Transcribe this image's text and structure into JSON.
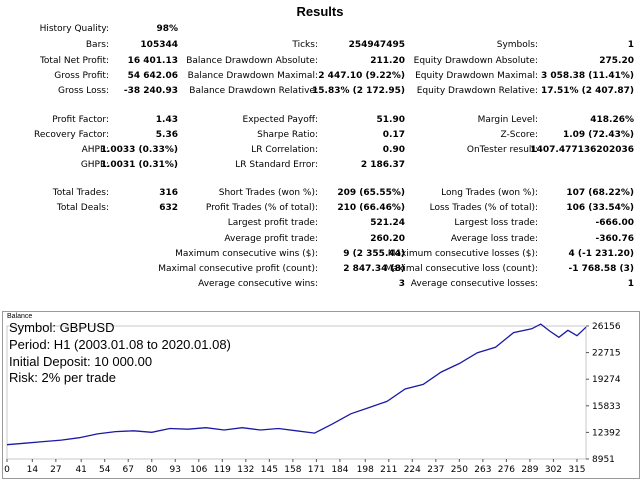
{
  "title": "Results",
  "stats": {
    "history_quality": {
      "label": "History Quality:",
      "value": "98%"
    },
    "bars": {
      "label": "Bars:",
      "value": "105344"
    },
    "ticks": {
      "label": "Ticks:",
      "value": "254947495"
    },
    "symbols": {
      "label": "Symbols:",
      "value": "1"
    },
    "total_net_profit": {
      "label": "Total Net Profit:",
      "value": "16 401.13"
    },
    "balance_dd_abs": {
      "label": "Balance Drawdown Absolute:",
      "value": "211.20"
    },
    "equity_dd_abs": {
      "label": "Equity Drawdown Absolute:",
      "value": "275.20"
    },
    "gross_profit": {
      "label": "Gross Profit:",
      "value": "54 642.06"
    },
    "balance_dd_max": {
      "label": "Balance Drawdown Maximal:",
      "value": "2 447.10 (9.22%)"
    },
    "equity_dd_max": {
      "label": "Equity Drawdown Maximal:",
      "value": "3 058.38 (11.41%)"
    },
    "gross_loss": {
      "label": "Gross Loss:",
      "value": "-38 240.93"
    },
    "balance_dd_rel": {
      "label": "Balance Drawdown Relative:",
      "value": "15.83% (2 172.95)"
    },
    "equity_dd_rel": {
      "label": "Equity Drawdown Relative:",
      "value": "17.51% (2 407.87)"
    },
    "profit_factor": {
      "label": "Profit Factor:",
      "value": "1.43"
    },
    "expected_payoff": {
      "label": "Expected Payoff:",
      "value": "51.90"
    },
    "margin_level": {
      "label": "Margin Level:",
      "value": "418.26%"
    },
    "recovery_factor": {
      "label": "Recovery Factor:",
      "value": "5.36"
    },
    "sharpe_ratio": {
      "label": "Sharpe Ratio:",
      "value": "0.17"
    },
    "z_score": {
      "label": "Z-Score:",
      "value": "1.09 (72.43%)"
    },
    "ahpr": {
      "label": "AHPR:",
      "value": "1.0033 (0.33%)"
    },
    "lr_correlation": {
      "label": "LR Correlation:",
      "value": "0.90"
    },
    "ontester_result": {
      "label": "OnTester result:",
      "value": "1407.477136202036"
    },
    "ghpr": {
      "label": "GHPR:",
      "value": "1.0031 (0.31%)"
    },
    "lr_std_error": {
      "label": "LR Standard Error:",
      "value": "2 186.37"
    },
    "total_trades": {
      "label": "Total Trades:",
      "value": "316"
    },
    "short_trades": {
      "label": "Short Trades (won %):",
      "value": "209 (65.55%)"
    },
    "long_trades": {
      "label": "Long Trades (won %):",
      "value": "107 (68.22%)"
    },
    "total_deals": {
      "label": "Total Deals:",
      "value": "632"
    },
    "profit_trades": {
      "label": "Profit Trades (% of total):",
      "value": "210 (66.46%)"
    },
    "loss_trades": {
      "label": "Loss Trades (% of total):",
      "value": "106 (33.54%)"
    },
    "largest_profit": {
      "label": "Largest profit trade:",
      "value": "521.24"
    },
    "largest_loss": {
      "label": "Largest loss trade:",
      "value": "-666.00"
    },
    "avg_profit": {
      "label": "Average profit trade:",
      "value": "260.20"
    },
    "avg_loss": {
      "label": "Average loss trade:",
      "value": "-360.76"
    },
    "max_consec_wins": {
      "label": "Maximum consecutive wins ($):",
      "value": "9 (2 355.44)"
    },
    "max_consec_losses": {
      "label": "Maximum consecutive losses ($):",
      "value": "4 (-1 231.20)"
    },
    "maximal_consec_profit": {
      "label": "Maximal consecutive profit (count):",
      "value": "2 847.34 (8)"
    },
    "maximal_consec_loss": {
      "label": "Maximal consecutive loss (count):",
      "value": "-1 768.58 (3)"
    },
    "avg_consec_wins": {
      "label": "Average consecutive wins:",
      "value": "3"
    },
    "avg_consec_losses": {
      "label": "Average consecutive losses:",
      "value": "1"
    }
  },
  "chart_info": {
    "panel_title": "Balance",
    "symbol": "Symbol: GBPUSD",
    "period": "Period: H1 (2003.01.08 to 2020.01.08)",
    "deposit": "Initial Deposit: 10 000.00",
    "risk": "Risk: 2% per trade"
  },
  "chart_data": {
    "type": "line",
    "title": "Balance",
    "x_ticks": [
      "0",
      "14",
      "27",
      "41",
      "54",
      "67",
      "80",
      "93",
      "106",
      "119",
      "132",
      "145",
      "158",
      "171",
      "184",
      "198",
      "211",
      "224",
      "237",
      "250",
      "263",
      "276",
      "289",
      "302",
      "315"
    ],
    "y_ticks": [
      "26156",
      "22715",
      "19274",
      "15833",
      "12392",
      "8951"
    ],
    "xlim": [
      0,
      320
    ],
    "ylim": [
      8951,
      26156
    ],
    "line_color": "#1a1aa6",
    "x": [
      0,
      10,
      20,
      30,
      40,
      50,
      60,
      70,
      80,
      90,
      100,
      110,
      120,
      130,
      140,
      150,
      160,
      170,
      180,
      190,
      200,
      210,
      220,
      230,
      240,
      250,
      260,
      270,
      280,
      290,
      295,
      300,
      305,
      310,
      315,
      320
    ],
    "y": [
      10800,
      11000,
      11200,
      11400,
      11700,
      12200,
      12500,
      12600,
      12400,
      12900,
      12800,
      13000,
      12700,
      13000,
      12700,
      12900,
      12600,
      12300,
      13500,
      14800,
      15600,
      16400,
      18000,
      18600,
      20200,
      21300,
      22700,
      23400,
      25300,
      25800,
      26400,
      25500,
      24700,
      25600,
      24900,
      26000
    ],
    "grid": false
  },
  "colors": {
    "line": "#1a1aa6",
    "border": "#9a9a9a"
  }
}
